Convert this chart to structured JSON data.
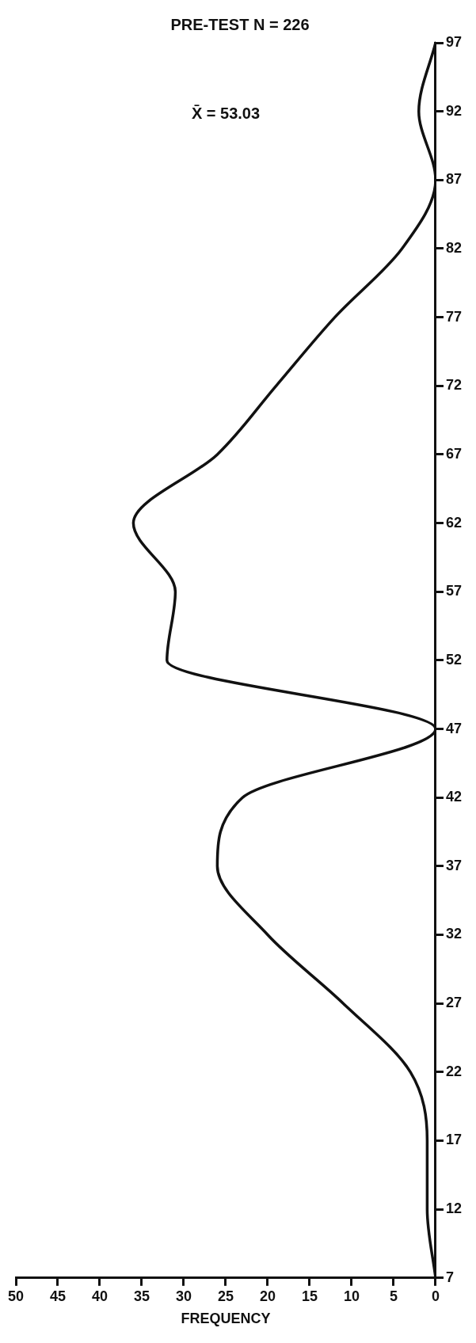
{
  "chart_data": {
    "type": "line",
    "orientation": "horizontal",
    "title": "PRE-TEST N = 226",
    "xlabel": "FREQUENCY",
    "annotations": [
      "X̄ = 53.03"
    ],
    "categories": [
      "97",
      "92",
      "87",
      "82",
      "77",
      "72",
      "67",
      "62",
      "57",
      "52",
      "47",
      "42",
      "37",
      "32",
      "27",
      "22",
      "17",
      "12",
      "7"
    ],
    "series": [
      {
        "color": "#111111",
        "values": [
          0,
          2,
          0,
          4,
          12,
          19,
          26,
          36,
          31,
          32,
          0,
          23,
          26,
          20,
          11,
          3,
          1,
          1,
          0
        ]
      }
    ],
    "xlim": [
      50,
      0
    ],
    "xticks": [
      0,
      5,
      10,
      15,
      20,
      25,
      30,
      35,
      40,
      45,
      50
    ],
    "grid": false,
    "legend": false,
    "marker": "none",
    "line_style": "solid"
  }
}
